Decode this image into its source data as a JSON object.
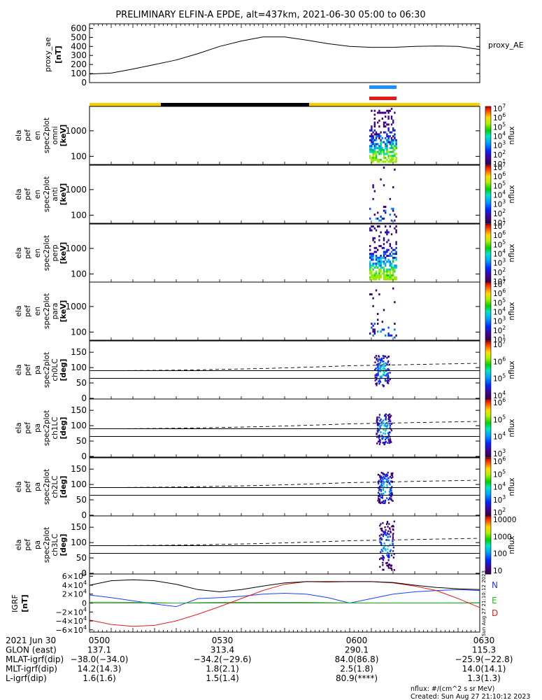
{
  "title": "PRELIMINARY ELFIN-A EPDE, alt=437km, 2021-06-30 05:00 to 06:30",
  "chart_data": [
    {
      "type": "line",
      "panel": "proxy_ae",
      "ylabel": [
        "proxy_ae",
        "[nT]"
      ],
      "legend": "proxy_AE",
      "yticks": [
        "0",
        "100",
        "200",
        "300",
        "400",
        "500",
        "600"
      ],
      "ylim": [
        0,
        650
      ],
      "x": [
        0,
        5,
        10,
        15,
        20,
        25,
        30,
        35,
        40,
        45,
        50,
        55,
        60,
        65,
        70,
        75,
        80,
        85,
        90
      ],
      "values": [
        95,
        105,
        150,
        200,
        250,
        320,
        400,
        460,
        505,
        505,
        470,
        430,
        400,
        390,
        390,
        400,
        405,
        400,
        365
      ]
    },
    {
      "type": "heatmap",
      "panels": [
        {
          "name": "omni",
          "ylabel": [
            "ela",
            "pef",
            "en",
            "spec2plot",
            "omni",
            "[keV]"
          ],
          "yticks": [
            "100",
            "1000"
          ],
          "cb_ticks": [
            "10^7",
            "10^6",
            "10^5",
            "10^4",
            "10^3",
            "10^2",
            "10^1"
          ],
          "cb_label": "nflux"
        },
        {
          "name": "anti",
          "ylabel": [
            "ela",
            "pef",
            "en",
            "spec2plot",
            "anti",
            "[keV]"
          ],
          "yticks": [
            "100",
            "1000"
          ],
          "cb_ticks": [
            "10^7",
            "10^6",
            "10^5",
            "10^4",
            "10^3",
            "10^2",
            "10^1"
          ],
          "cb_label": "nflux"
        },
        {
          "name": "perp",
          "ylabel": [
            "ela",
            "pef",
            "en",
            "spec2plot",
            "perp",
            "[keV]"
          ],
          "yticks": [
            "100",
            "1000"
          ],
          "cb_ticks": [
            "10^7",
            "10^6",
            "10^5",
            "10^4",
            "10^3",
            "10^2",
            "10^1"
          ],
          "cb_label": "nflux"
        },
        {
          "name": "para",
          "ylabel": [
            "ela",
            "pef",
            "en",
            "spec2plot",
            "para",
            "[keV]"
          ],
          "yticks": [
            "100",
            "1000"
          ],
          "cb_ticks": [
            "10^7",
            "10^6",
            "10^5",
            "10^4",
            "10^3",
            "10^2",
            "10^1"
          ],
          "cb_label": "nflux"
        }
      ]
    },
    {
      "type": "heatmap",
      "panels": [
        {
          "name": "ch0LC",
          "ylabel": [
            "ela",
            "pef",
            "pa",
            "spec2plot",
            "ch0LC",
            "[deg]"
          ],
          "yticks": [
            "0",
            "50",
            "100",
            "150"
          ],
          "ylim": [
            0,
            180
          ],
          "cb_ticks": [
            "10^7",
            "10^6",
            "10^5",
            "10^4"
          ],
          "cb_label": "nflux"
        },
        {
          "name": "ch1LC",
          "ylabel": [
            "ela",
            "pef",
            "pa",
            "spec2plot",
            "ch1LC",
            "[deg]"
          ],
          "yticks": [
            "0",
            "50",
            "100",
            "150"
          ],
          "ylim": [
            0,
            180
          ],
          "cb_ticks": [
            "10^6",
            "10^5",
            "10^4",
            "10^3"
          ],
          "cb_label": "nflux"
        },
        {
          "name": "ch2LC",
          "ylabel": [
            "ela",
            "pef",
            "pa",
            "spec2plot",
            "ch2LC",
            "[deg]"
          ],
          "yticks": [
            "0",
            "50",
            "100",
            "150"
          ],
          "ylim": [
            0,
            180
          ],
          "cb_ticks": [
            "10^6",
            "10^5",
            "10^4",
            "10^3",
            "10^2"
          ],
          "cb_label": "nflux"
        },
        {
          "name": "ch3LC",
          "ylabel": [
            "ela",
            "pef",
            "pa",
            "spec2plot",
            "ch3LC",
            "[deg]"
          ],
          "yticks": [
            "0",
            "50",
            "100",
            "150"
          ],
          "ylim": [
            0,
            180
          ],
          "cb_ticks": [
            "10000",
            "1000",
            "100",
            "10"
          ],
          "cb_label": "nflux"
        }
      ]
    },
    {
      "type": "line",
      "panel": "IGRF",
      "ylabel": [
        "IGRF",
        "[nT]"
      ],
      "yticks": [
        "6×10^4",
        "4×10^4",
        "2×10^4",
        "0",
        "−2×10^4",
        "−4×10^4",
        "−6×10^4"
      ],
      "ylim": [
        -65000,
        65000
      ],
      "x": [
        0,
        5,
        10,
        15,
        20,
        25,
        30,
        35,
        40,
        45,
        50,
        55,
        60,
        65,
        70,
        75,
        80,
        85,
        90
      ],
      "series": [
        {
          "name": "N",
          "values": [
            18000,
            12000,
            5000,
            -2000,
            -8000,
            10000,
            12000,
            15000,
            20000,
            22000,
            20000,
            12000,
            0,
            10000,
            20000,
            25000,
            28000,
            30000,
            28000
          ]
        },
        {
          "name": "E",
          "values": [
            2000,
            2000,
            1500,
            1000,
            0,
            1000,
            1500,
            1500,
            1500,
            1500,
            1500,
            1000,
            500,
            500,
            500,
            500,
            500,
            500,
            1000
          ]
        },
        {
          "name": "D",
          "values": [
            -38000,
            -48000,
            -52000,
            -50000,
            -40000,
            -25000,
            -8000,
            10000,
            28000,
            42000,
            48000,
            47000,
            48000,
            48000,
            45000,
            38000,
            28000,
            10000,
            -10000
          ]
        }
      ],
      "total_field": [
        40000,
        50000,
        52000,
        50000,
        42000,
        30000,
        25000,
        30000,
        38000,
        45000,
        48000,
        48000,
        48000,
        48000,
        46000,
        40000,
        35000,
        32000,
        30000
      ]
    }
  ],
  "bottom_table": {
    "rows": [
      [
        "2021 Jun 30",
        "0500",
        "0530",
        "0600",
        "0630"
      ],
      [
        "GLON (east)",
        "137.1",
        "313.4",
        "290.1",
        "115.3"
      ],
      [
        "MLAT-igrf(dip)",
        "−38.0(−34.0)",
        "−34.2(−29.6)",
        "84.0(86.8)",
        "−25.9(−22.8)"
      ],
      [
        "MLT-igrf(dip)",
        "14.2(14.3)",
        "1.8(2.1)",
        "2.5(1.8)",
        "14.0(14.1)"
      ],
      [
        "L-igrf(dip)",
        "1.6(1.6)",
        "1.5(1.4)",
        "80.9(****)",
        "1.3(1.3)"
      ]
    ]
  },
  "footer": {
    "units": "nflux: #/(cm^2 s sr MeV)",
    "created": "Created: Sun Aug 27 21:10:12 2023"
  },
  "side_stamp": "Sun Aug 27 21:10:12 2023",
  "colors": {
    "blue_bar": "#1e90ff",
    "red_bar": "#e41b1b",
    "sunlit": "#f5d000",
    "eclipse": "#000000",
    "N": "#1f3bff",
    "E": "#1fbf1f",
    "D": "#e41b1b"
  }
}
